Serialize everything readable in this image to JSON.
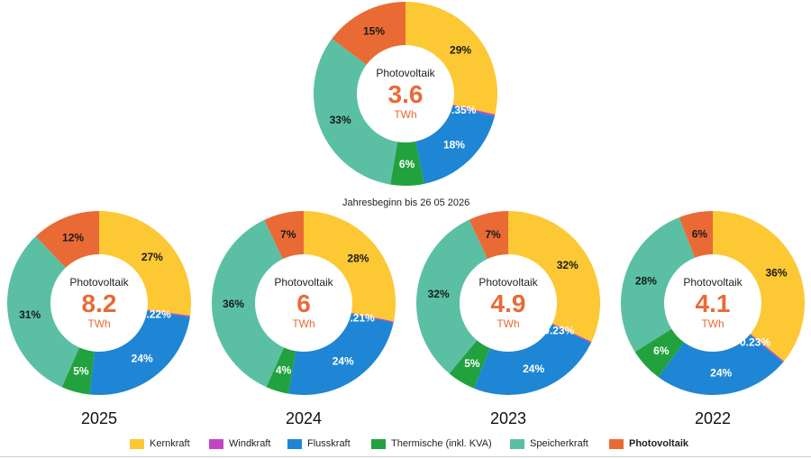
{
  "subtitle": "Jahresbeginn bis 26 05 2026",
  "colors": {
    "Kernkraft": "#fcc834",
    "Windkraft": "#c444c4",
    "Flusskraft": "#1e86d4",
    "Thermische (inkl. KVA)": "#22a13f",
    "Speicherkraft": "#5bbfa4",
    "Photovoltaik": "#ea6a35"
  },
  "legend": [
    {
      "label": "Kernkraft",
      "key": "Kernkraft",
      "bold": false
    },
    {
      "label": "Windkraft",
      "key": "Windkraft",
      "bold": false
    },
    {
      "label": "Flusskraft",
      "key": "Flusskraft",
      "bold": false
    },
    {
      "label": "Thermische (inkl. KVA)",
      "key": "Thermische (inkl. KVA)",
      "bold": false
    },
    {
      "label": "Speicherkraft",
      "key": "Speicherkraft",
      "bold": false
    },
    {
      "label": "Photovoltaik",
      "key": "Photovoltaik",
      "bold": true
    }
  ],
  "chart_data": [
    {
      "type": "pie",
      "variant": "donut",
      "year": "",
      "center_title": "Photovoltaik",
      "center_value": "3.6",
      "center_unit": "TWh",
      "categories": [
        "Kernkraft",
        "Windkraft",
        "Flusskraft",
        "Thermische (inkl. KVA)",
        "Speicherkraft",
        "Photovoltaik"
      ],
      "values": [
        29,
        0.35,
        18,
        6,
        33,
        15
      ],
      "labels": [
        "29%",
        "0.35%",
        "18%",
        "6%",
        "33%",
        "15%"
      ]
    },
    {
      "type": "pie",
      "variant": "donut",
      "year": "2025",
      "center_title": "Photovoltaik",
      "center_value": "8.2",
      "center_unit": "TWh",
      "categories": [
        "Kernkraft",
        "Windkraft",
        "Flusskraft",
        "Thermische (inkl. KVA)",
        "Speicherkraft",
        "Photovoltaik"
      ],
      "values": [
        27,
        0.22,
        24,
        5,
        31,
        12
      ],
      "labels": [
        "27%",
        "0.22%",
        "24%",
        "5%",
        "31%",
        "12%"
      ]
    },
    {
      "type": "pie",
      "variant": "donut",
      "year": "2024",
      "center_title": "Photovoltaik",
      "center_value": "6",
      "center_unit": "TWh",
      "categories": [
        "Kernkraft",
        "Windkraft",
        "Flusskraft",
        "Thermische (inkl. KVA)",
        "Speicherkraft",
        "Photovoltaik"
      ],
      "values": [
        28,
        0.21,
        24,
        4,
        36,
        7
      ],
      "labels": [
        "28%",
        "0.21%",
        "24%",
        "4%",
        "36%",
        "7%"
      ]
    },
    {
      "type": "pie",
      "variant": "donut",
      "year": "2023",
      "center_title": "Photovoltaik",
      "center_value": "4.9",
      "center_unit": "TWh",
      "categories": [
        "Kernkraft",
        "Windkraft",
        "Flusskraft",
        "Thermische (inkl. KVA)",
        "Speicherkraft",
        "Photovoltaik"
      ],
      "values": [
        32,
        0.23,
        24,
        5,
        32,
        7
      ],
      "labels": [
        "32%",
        "0.23%",
        "24%",
        "5%",
        "32%",
        "7%"
      ]
    },
    {
      "type": "pie",
      "variant": "donut",
      "year": "2022",
      "center_title": "Photovoltaik",
      "center_value": "4.1",
      "center_unit": "TWh",
      "categories": [
        "Kernkraft",
        "Windkraft",
        "Flusskraft",
        "Thermische (inkl. KVA)",
        "Speicherkraft",
        "Photovoltaik"
      ],
      "values": [
        36,
        0.23,
        24,
        6,
        28,
        6
      ],
      "labels": [
        "36%",
        "0.23%",
        "24%",
        "6%",
        "28%",
        "6%"
      ]
    }
  ]
}
